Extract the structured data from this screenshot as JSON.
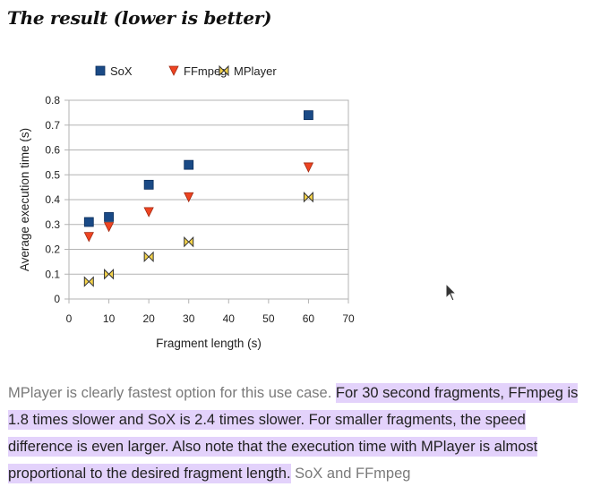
{
  "heading": "The result (lower is better)",
  "chart_data": {
    "type": "scatter",
    "xlabel": "Fragment length (s)",
    "ylabel": "Average execution time (s)",
    "xlim": [
      0,
      70
    ],
    "ylim": [
      0,
      0.8
    ],
    "xticks": [
      0,
      10,
      20,
      30,
      40,
      50,
      60,
      70
    ],
    "yticks": [
      0,
      0.1,
      0.2,
      0.3,
      0.4,
      0.5,
      0.6,
      0.7,
      0.8
    ],
    "ytick_labels": [
      "0",
      "0.1",
      "0.2",
      "0.3",
      "0.4",
      "0.5",
      "0.6",
      "0.7",
      "0.8"
    ],
    "grid": "horizontal",
    "legend": "top",
    "series": [
      {
        "name": "SoX",
        "marker": "square",
        "color": "#1a4a86",
        "x": [
          5,
          10,
          20,
          30,
          60
        ],
        "y": [
          0.31,
          0.33,
          0.46,
          0.54,
          0.74
        ]
      },
      {
        "name": "FFmpeg",
        "marker": "triangle-down",
        "color": "#ee4422",
        "x": [
          5,
          10,
          20,
          30,
          60
        ],
        "y": [
          0.25,
          0.29,
          0.35,
          0.41,
          0.53
        ]
      },
      {
        "name": "MPlayer",
        "marker": "bowtie",
        "color": "#f5d34a",
        "x": [
          5,
          10,
          20,
          30,
          60
        ],
        "y": [
          0.07,
          0.1,
          0.17,
          0.23,
          0.41
        ]
      }
    ]
  },
  "paragraph": {
    "plain_start": "MPlayer is clearly fastest option for this use case. ",
    "highlighted": "For 30 second fragments, FFmpeg is 1.8 times slower and SoX is 2.4 times slower. For smaller fragments, the speed difference is even larger. Also note that the execution time with MPlayer is almost proportional to the desired fragment length.",
    "plain_end": " SoX and FFmpeg"
  }
}
